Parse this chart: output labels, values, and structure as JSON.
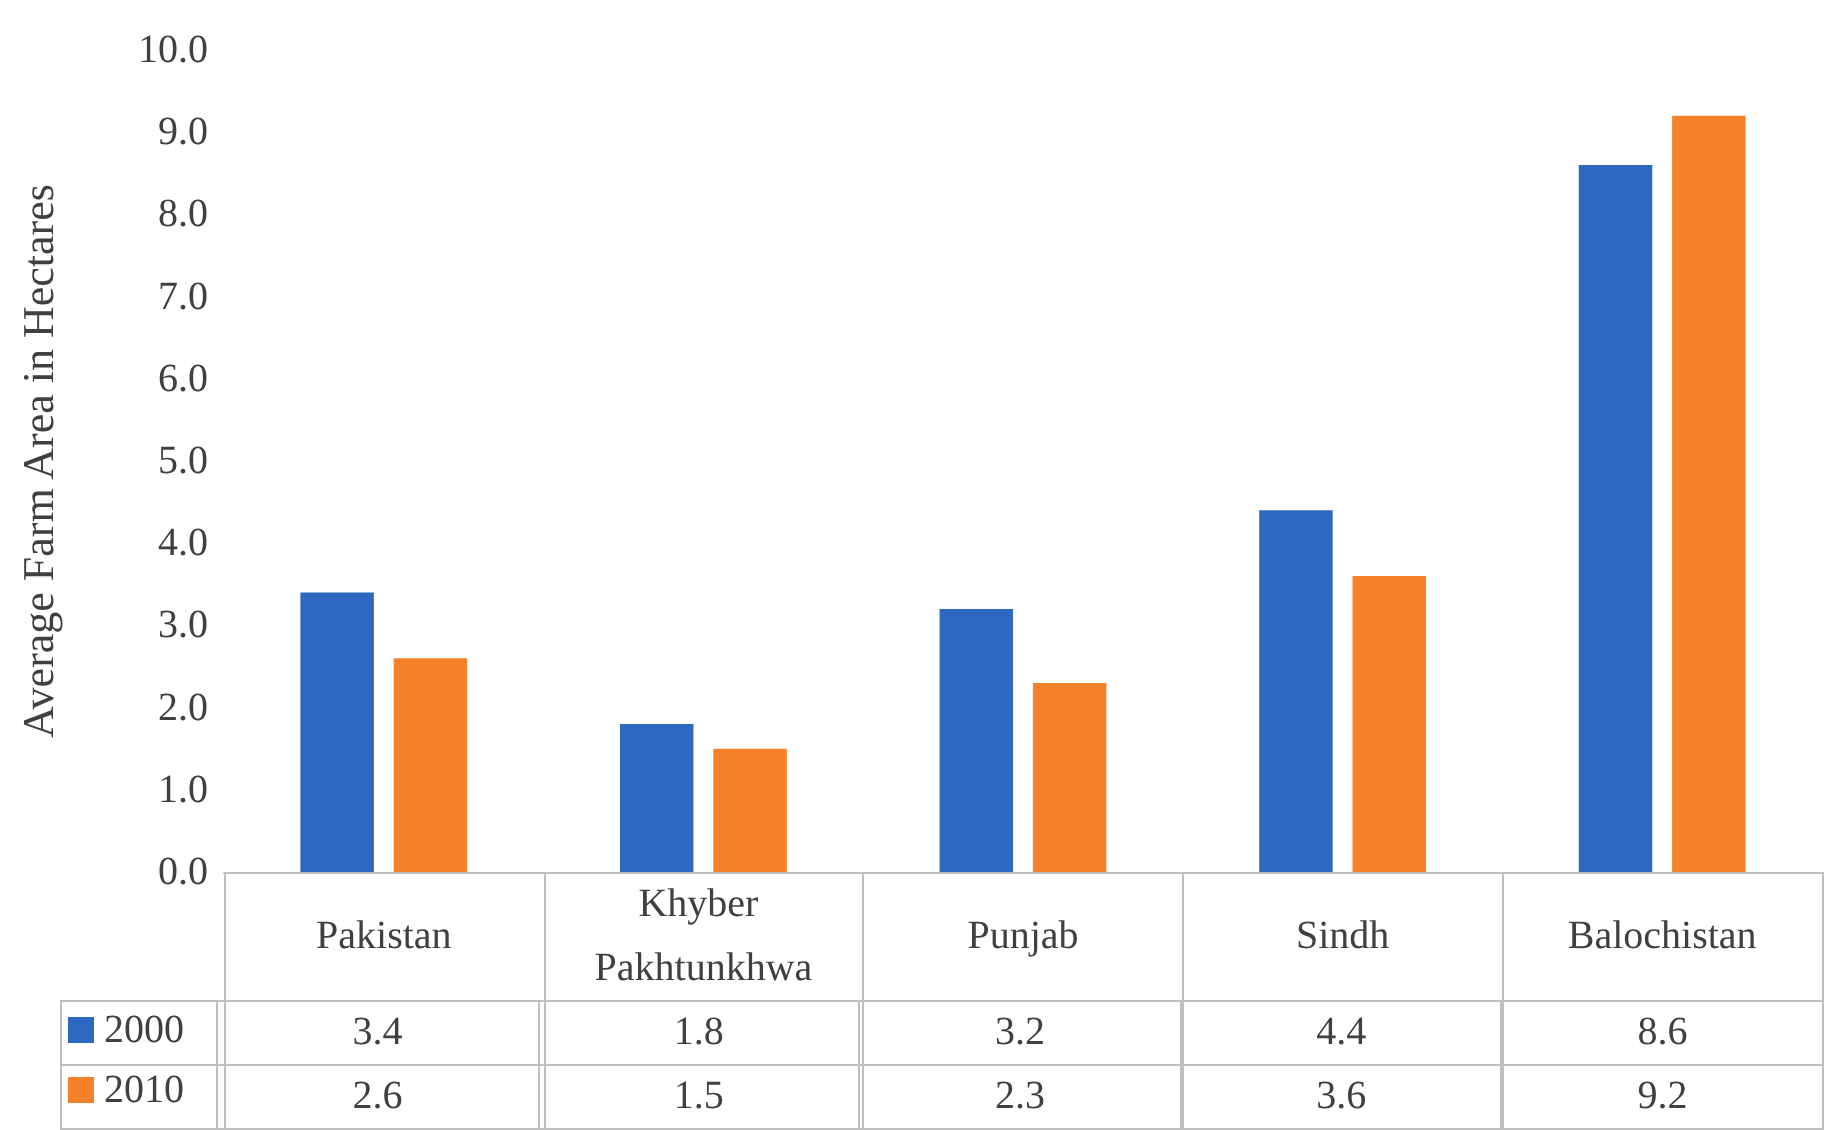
{
  "chart_data": {
    "type": "bar",
    "ylabel": "Average Farm Area in Hectares",
    "categories": [
      "Pakistan",
      "Khyber Pakhtunkhwa",
      "Punjab",
      "Sindh",
      "Balochistan"
    ],
    "series": [
      {
        "name": "2000",
        "color": "#2e69c1",
        "values": [
          3.4,
          1.8,
          3.2,
          4.4,
          8.6
        ]
      },
      {
        "name": "2010",
        "color": "#f5822a",
        "values": [
          2.6,
          1.5,
          2.3,
          3.6,
          9.2
        ]
      }
    ],
    "ylim": [
      0,
      10
    ],
    "yticks": [
      {
        "value": 0,
        "label": "0.0"
      },
      {
        "value": 1,
        "label": "1.0"
      },
      {
        "value": 2,
        "label": "2.0"
      },
      {
        "value": 3,
        "label": "3.0"
      },
      {
        "value": 4,
        "label": "4.0"
      },
      {
        "value": 5,
        "label": "5.0"
      },
      {
        "value": 6,
        "label": "6.0"
      },
      {
        "value": 7,
        "label": "7.0"
      },
      {
        "value": 8,
        "label": "8.0"
      },
      {
        "value": 9,
        "label": "9.0"
      },
      {
        "value": 10,
        "label": "10.0"
      }
    ],
    "grid": false,
    "legend": "bottom left",
    "data_labels": true
  }
}
